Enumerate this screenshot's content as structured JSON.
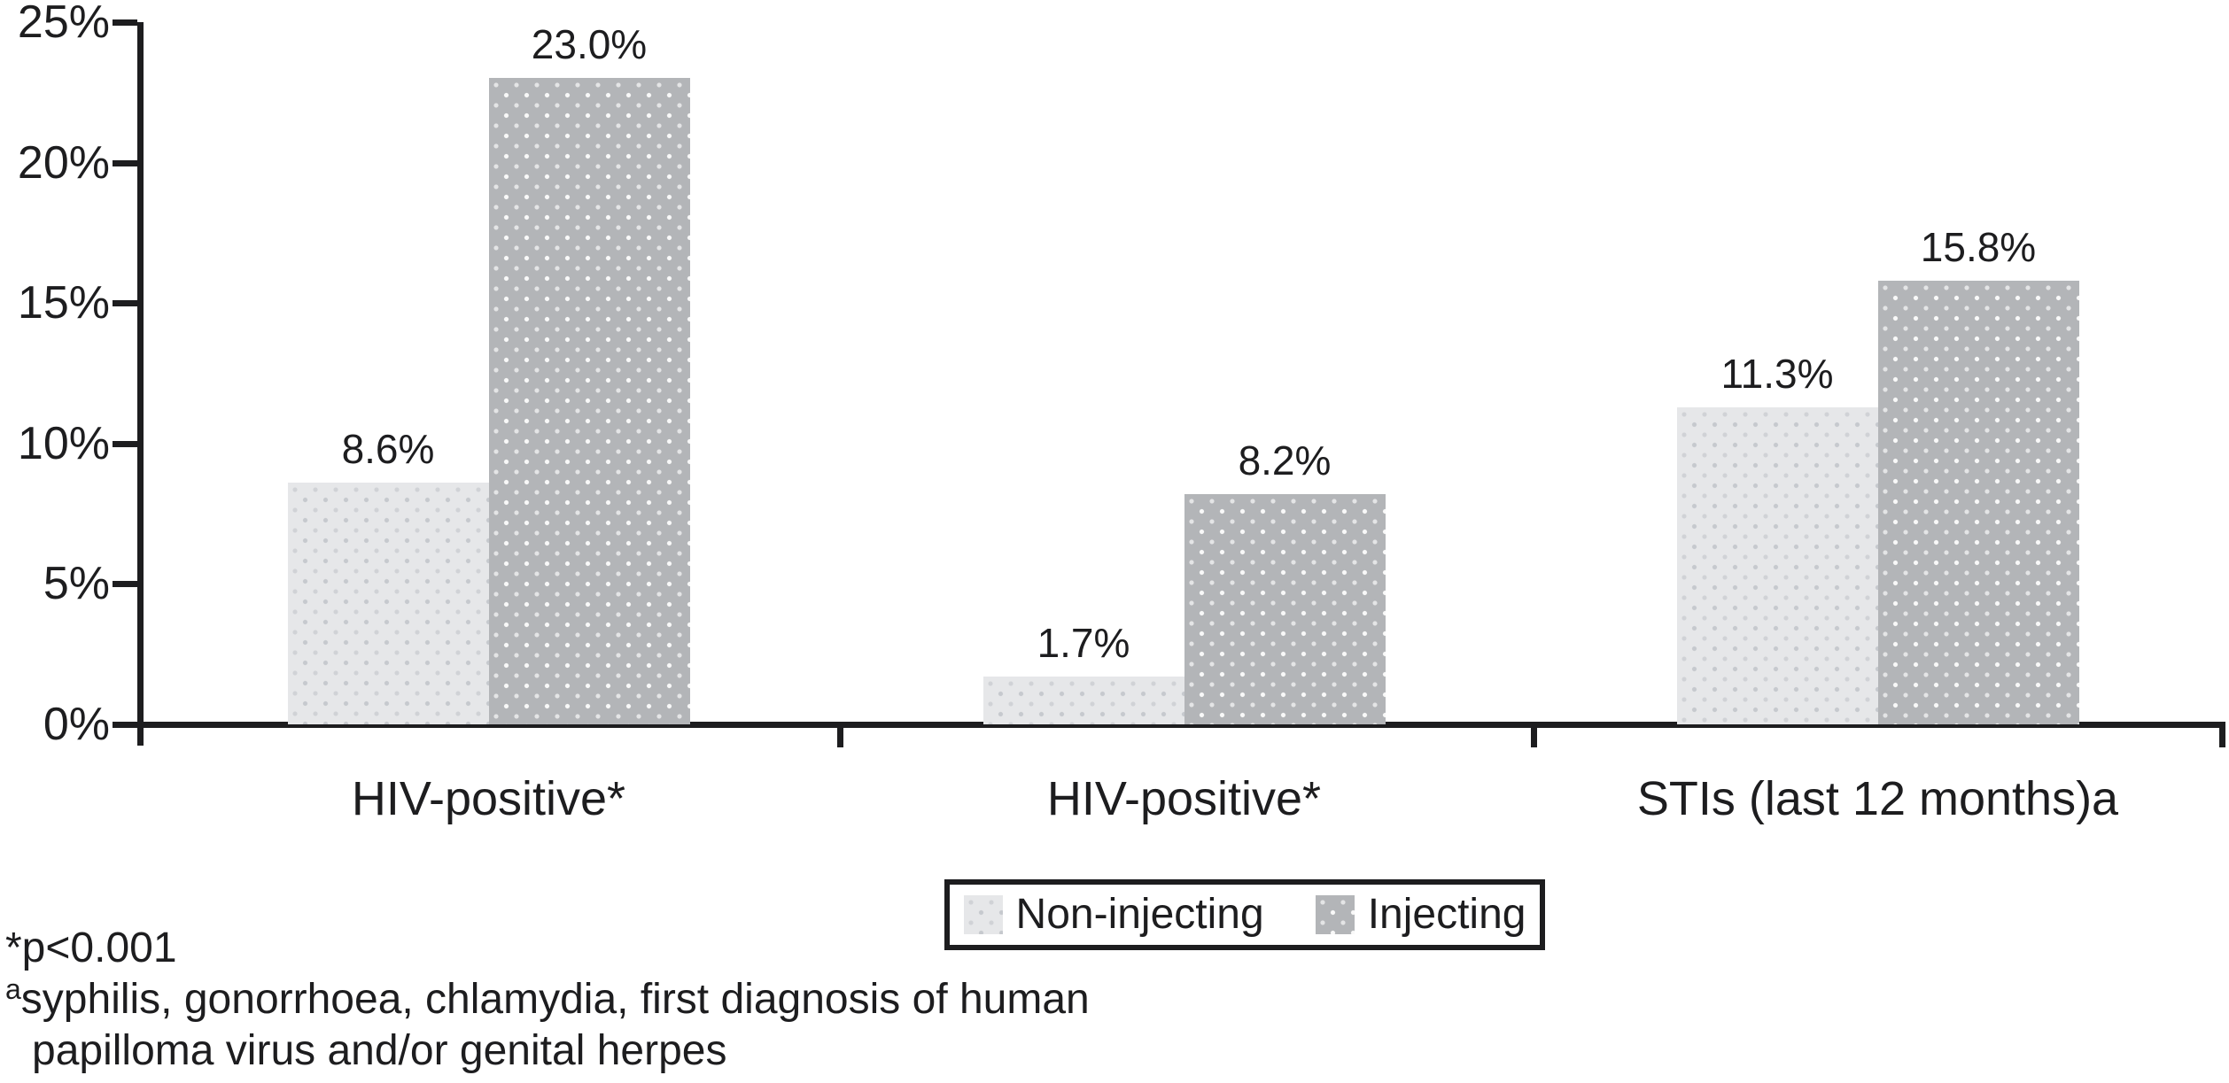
{
  "chart_data": {
    "type": "bar",
    "title": "",
    "categories": [
      "HIV-positive*",
      "HIV-positive*",
      "STIs (last 12 months)a"
    ],
    "series": [
      {
        "name": "Non-injecting",
        "values": [
          8.6,
          1.7,
          11.3
        ],
        "labels": [
          "8.6%",
          "1.7%",
          "11.3%"
        ],
        "color": "#e6e7e9",
        "pattern": "dotted"
      },
      {
        "name": "Injecting",
        "values": [
          23.0,
          8.2,
          15.8
        ],
        "labels": [
          "23.0%",
          "8.2%",
          "15.8%"
        ],
        "color": "#b3b5b8",
        "pattern": "dotted"
      }
    ],
    "y_axis": {
      "tick_labels": [
        "25%",
        "20%",
        "15%",
        "10%",
        "5%",
        "0%"
      ],
      "tick_values": [
        25,
        20,
        15,
        10,
        5,
        0
      ],
      "range": [
        0,
        25
      ]
    },
    "grid": false,
    "legend_position": "bottom-center"
  },
  "legend": {
    "items": [
      {
        "label": "Non-injecting",
        "swatch": "light-dotted"
      },
      {
        "label": "Injecting",
        "swatch": "dark-dotted"
      }
    ]
  },
  "footnotes": {
    "pvalue": "*p<0.001",
    "sti_sup": "a",
    "sti_text": "syphilis, gonorrhoea, chlamydia, first diagnosis of human",
    "sti_text_cont": "papilloma virus and/or genital herpes"
  },
  "colors": {
    "axis": "#1d1d1f",
    "text": "#1d1d1f",
    "bar_light": "#e6e7e9",
    "bar_dark": "#b3b5b8",
    "legend_border": "#1d1d1f"
  }
}
